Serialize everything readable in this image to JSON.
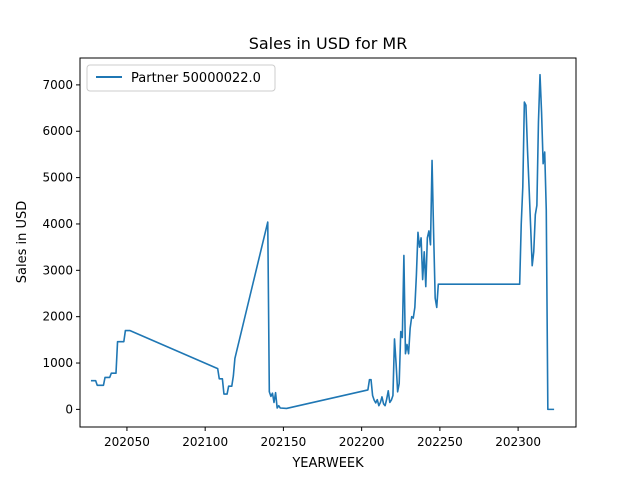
{
  "chart_data": {
    "type": "line",
    "title": "Sales in USD for MR",
    "xlabel": "YEARWEEK",
    "ylabel": "Sales in USD",
    "xlim": [
      202020,
      202337
    ],
    "ylim": [
      -380,
      7580
    ],
    "xticks": [
      202050,
      202100,
      202150,
      202200,
      202250,
      202300
    ],
    "yticks": [
      0,
      1000,
      2000,
      3000,
      4000,
      5000,
      6000,
      7000
    ],
    "grid": false,
    "legend_position": "top-left",
    "series": [
      {
        "name": "Partner 50000022.0",
        "color": "#1f77b4",
        "x": [
          202027,
          202030,
          202031,
          202035,
          202036,
          202039,
          202040,
          202043,
          202044,
          202048,
          202049,
          202052,
          202108,
          202109,
          202111,
          202112,
          202114,
          202115,
          202117,
          202118,
          202119,
          202140,
          202141,
          202142,
          202143,
          202144,
          202145,
          202146,
          202147,
          202148,
          202152,
          202204,
          202205,
          202206,
          202207,
          202208,
          202209,
          202210,
          202211,
          202212,
          202213,
          202214,
          202215,
          202216,
          202217,
          202218,
          202219,
          202220,
          202221,
          202222,
          202223,
          202224,
          202225,
          202226,
          202227,
          202228,
          202229,
          202230,
          202231,
          202232,
          202233,
          202234,
          202235,
          202236,
          202237,
          202238,
          202239,
          202240,
          202241,
          202242,
          202243,
          202244,
          202245,
          202246,
          202247,
          202248,
          202249,
          202250,
          202251,
          202301,
          202302,
          202303,
          202304,
          202305,
          202306,
          202307,
          202308,
          202309,
          202310,
          202311,
          202312,
          202313,
          202314,
          202315,
          202316,
          202317,
          202318,
          202319,
          202320,
          202323
        ],
        "values": [
          620,
          620,
          520,
          520,
          690,
          690,
          780,
          780,
          1460,
          1460,
          1700,
          1700,
          880,
          660,
          660,
          330,
          330,
          500,
          500,
          720,
          1100,
          4040,
          380,
          280,
          350,
          150,
          360,
          30,
          80,
          30,
          20,
          420,
          640,
          640,
          300,
          200,
          140,
          210,
          80,
          150,
          270,
          120,
          80,
          220,
          400,
          150,
          200,
          300,
          1520,
          1000,
          380,
          560,
          1680,
          1550,
          3320,
          1200,
          1400,
          1200,
          1750,
          2000,
          1970,
          2200,
          2900,
          3820,
          3500,
          3700,
          2800,
          3400,
          2650,
          3700,
          3850,
          3550,
          5370,
          3800,
          2400,
          2200,
          2700,
          2700,
          2700,
          2700,
          4000,
          4800,
          6630,
          6560,
          5600,
          4800,
          3950,
          3100,
          3400,
          4200,
          4400,
          6200,
          7220,
          6400,
          5300,
          5550,
          4300,
          0,
          0,
          0
        ]
      }
    ]
  }
}
